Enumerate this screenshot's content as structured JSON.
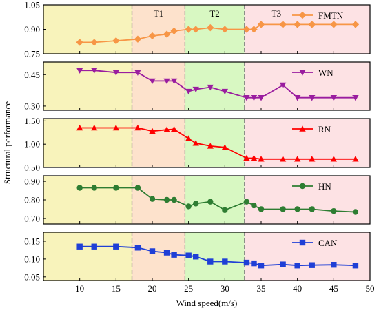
{
  "chart_data": {
    "type": "line",
    "xlabel": "Wind speed(m/s)",
    "ylabel": "Structural performance",
    "xlim": [
      5,
      50
    ],
    "xticks": [
      10,
      15,
      20,
      25,
      30,
      35,
      40,
      45,
      50
    ],
    "region_boundaries": [
      17.2,
      24.5,
      32.7
    ],
    "region_labels": [
      "T1",
      "T2",
      "T3"
    ],
    "region_colors": [
      "#f8f3bb",
      "#fde2cc",
      "#d8f8c2",
      "#fde2e4"
    ],
    "boundary_color": "#808080",
    "x": [
      10,
      12,
      15,
      18,
      20,
      22,
      23,
      25,
      26,
      28,
      30,
      33,
      34,
      35,
      38,
      40,
      42,
      45,
      48
    ],
    "panels": [
      {
        "name": "FMTN",
        "color": "#f79646",
        "marker": "diamond",
        "ylim": [
          0.75,
          1.05
        ],
        "yticks": [
          0.75,
          0.9,
          1.05
        ],
        "ytick_labels": [
          "0.75",
          "0.90",
          "1.05"
        ],
        "values": [
          0.82,
          0.82,
          0.83,
          0.84,
          0.86,
          0.87,
          0.89,
          0.9,
          0.9,
          0.91,
          0.9,
          0.9,
          0.9,
          0.93,
          0.93,
          0.93,
          0.93,
          0.93,
          0.93
        ]
      },
      {
        "name": "WN",
        "color": "#9a1d9f",
        "marker": "triangle-down",
        "ylim": [
          0.28,
          0.51
        ],
        "yticks": [
          0.3,
          0.45
        ],
        "ytick_labels": [
          "0.30",
          "0.45"
        ],
        "values": [
          0.47,
          0.47,
          0.46,
          0.46,
          0.42,
          0.42,
          0.42,
          0.37,
          0.38,
          0.39,
          0.37,
          0.34,
          0.34,
          0.34,
          0.4,
          0.34,
          0.34,
          0.34,
          0.34
        ]
      },
      {
        "name": "RN",
        "color": "#ff0000",
        "marker": "triangle-up",
        "ylim": [
          0.5,
          1.55
        ],
        "yticks": [
          0.5,
          1.0,
          1.5
        ],
        "ytick_labels": [
          "0.50",
          "1.00",
          "1.50"
        ],
        "values": [
          1.35,
          1.35,
          1.35,
          1.35,
          1.28,
          1.31,
          1.32,
          1.12,
          1.02,
          0.96,
          0.93,
          0.7,
          0.7,
          0.68,
          0.68,
          0.68,
          0.68,
          0.68,
          0.68
        ]
      },
      {
        "name": "HN",
        "color": "#2e7d32",
        "marker": "circle",
        "ylim": [
          0.67,
          0.93
        ],
        "yticks": [
          0.7,
          0.8,
          0.9
        ],
        "ytick_labels": [
          "0.70",
          "0.80",
          "0.90"
        ],
        "values": [
          0.865,
          0.865,
          0.865,
          0.865,
          0.805,
          0.8,
          0.8,
          0.765,
          0.78,
          0.79,
          0.745,
          0.79,
          0.77,
          0.75,
          0.75,
          0.75,
          0.75,
          0.74,
          0.735
        ]
      },
      {
        "name": "CAN",
        "color": "#1f3fd6",
        "marker": "square",
        "ylim": [
          0.04,
          0.175
        ],
        "yticks": [
          0.05,
          0.1,
          0.15
        ],
        "ytick_labels": [
          "0.05",
          "0.10",
          "0.15"
        ],
        "values": [
          0.135,
          0.135,
          0.135,
          0.132,
          0.122,
          0.118,
          0.112,
          0.11,
          0.107,
          0.093,
          0.093,
          0.09,
          0.088,
          0.082,
          0.085,
          0.082,
          0.083,
          0.084,
          0.082
        ]
      }
    ]
  }
}
